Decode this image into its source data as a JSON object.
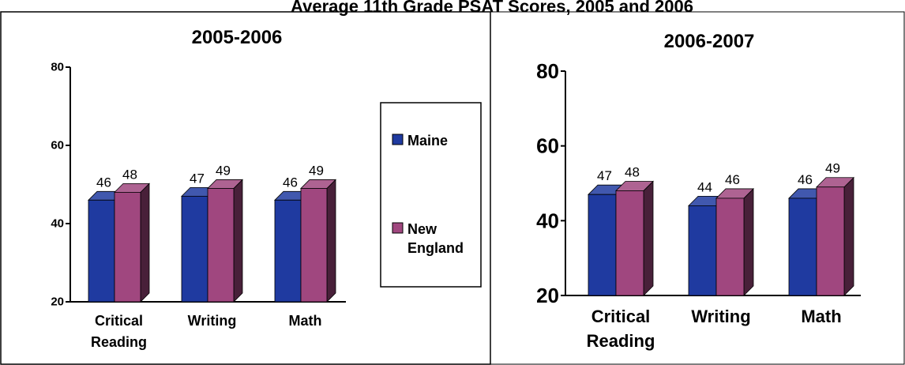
{
  "header": {
    "title": "Average 11th Grade PSAT Scores, 2005 and 2006"
  },
  "legend": {
    "items": [
      {
        "label_lines": [
          "Maine"
        ],
        "color": "#1f3aa0"
      },
      {
        "label_lines": [
          "New",
          "England"
        ],
        "color": "#a0477f"
      }
    ]
  },
  "chart_data": [
    {
      "type": "bar",
      "title": "2005-2006",
      "categories": [
        [
          "Critical",
          "Reading"
        ],
        [
          "Writing"
        ],
        [
          "Math"
        ]
      ],
      "series": [
        {
          "name": "Maine",
          "values": [
            46,
            47,
            46
          ]
        },
        {
          "name": "New England",
          "values": [
            48,
            49,
            49
          ]
        }
      ],
      "ylim": [
        20,
        80
      ],
      "yticks": [
        "20",
        "40",
        "60",
        "80"
      ],
      "grid": false,
      "legend_position": "right"
    },
    {
      "type": "bar",
      "title": "2006-2007",
      "categories": [
        [
          "Critical",
          "Reading"
        ],
        [
          "Writing"
        ],
        [
          "Math"
        ]
      ],
      "series": [
        {
          "name": "Maine",
          "values": [
            47,
            44,
            46
          ]
        },
        {
          "name": "New England",
          "values": [
            48,
            46,
            49
          ]
        }
      ],
      "ylim": [
        20,
        80
      ],
      "yticks": [
        "20",
        "40",
        "60",
        "80"
      ],
      "grid": false,
      "legend_position": "none"
    }
  ]
}
